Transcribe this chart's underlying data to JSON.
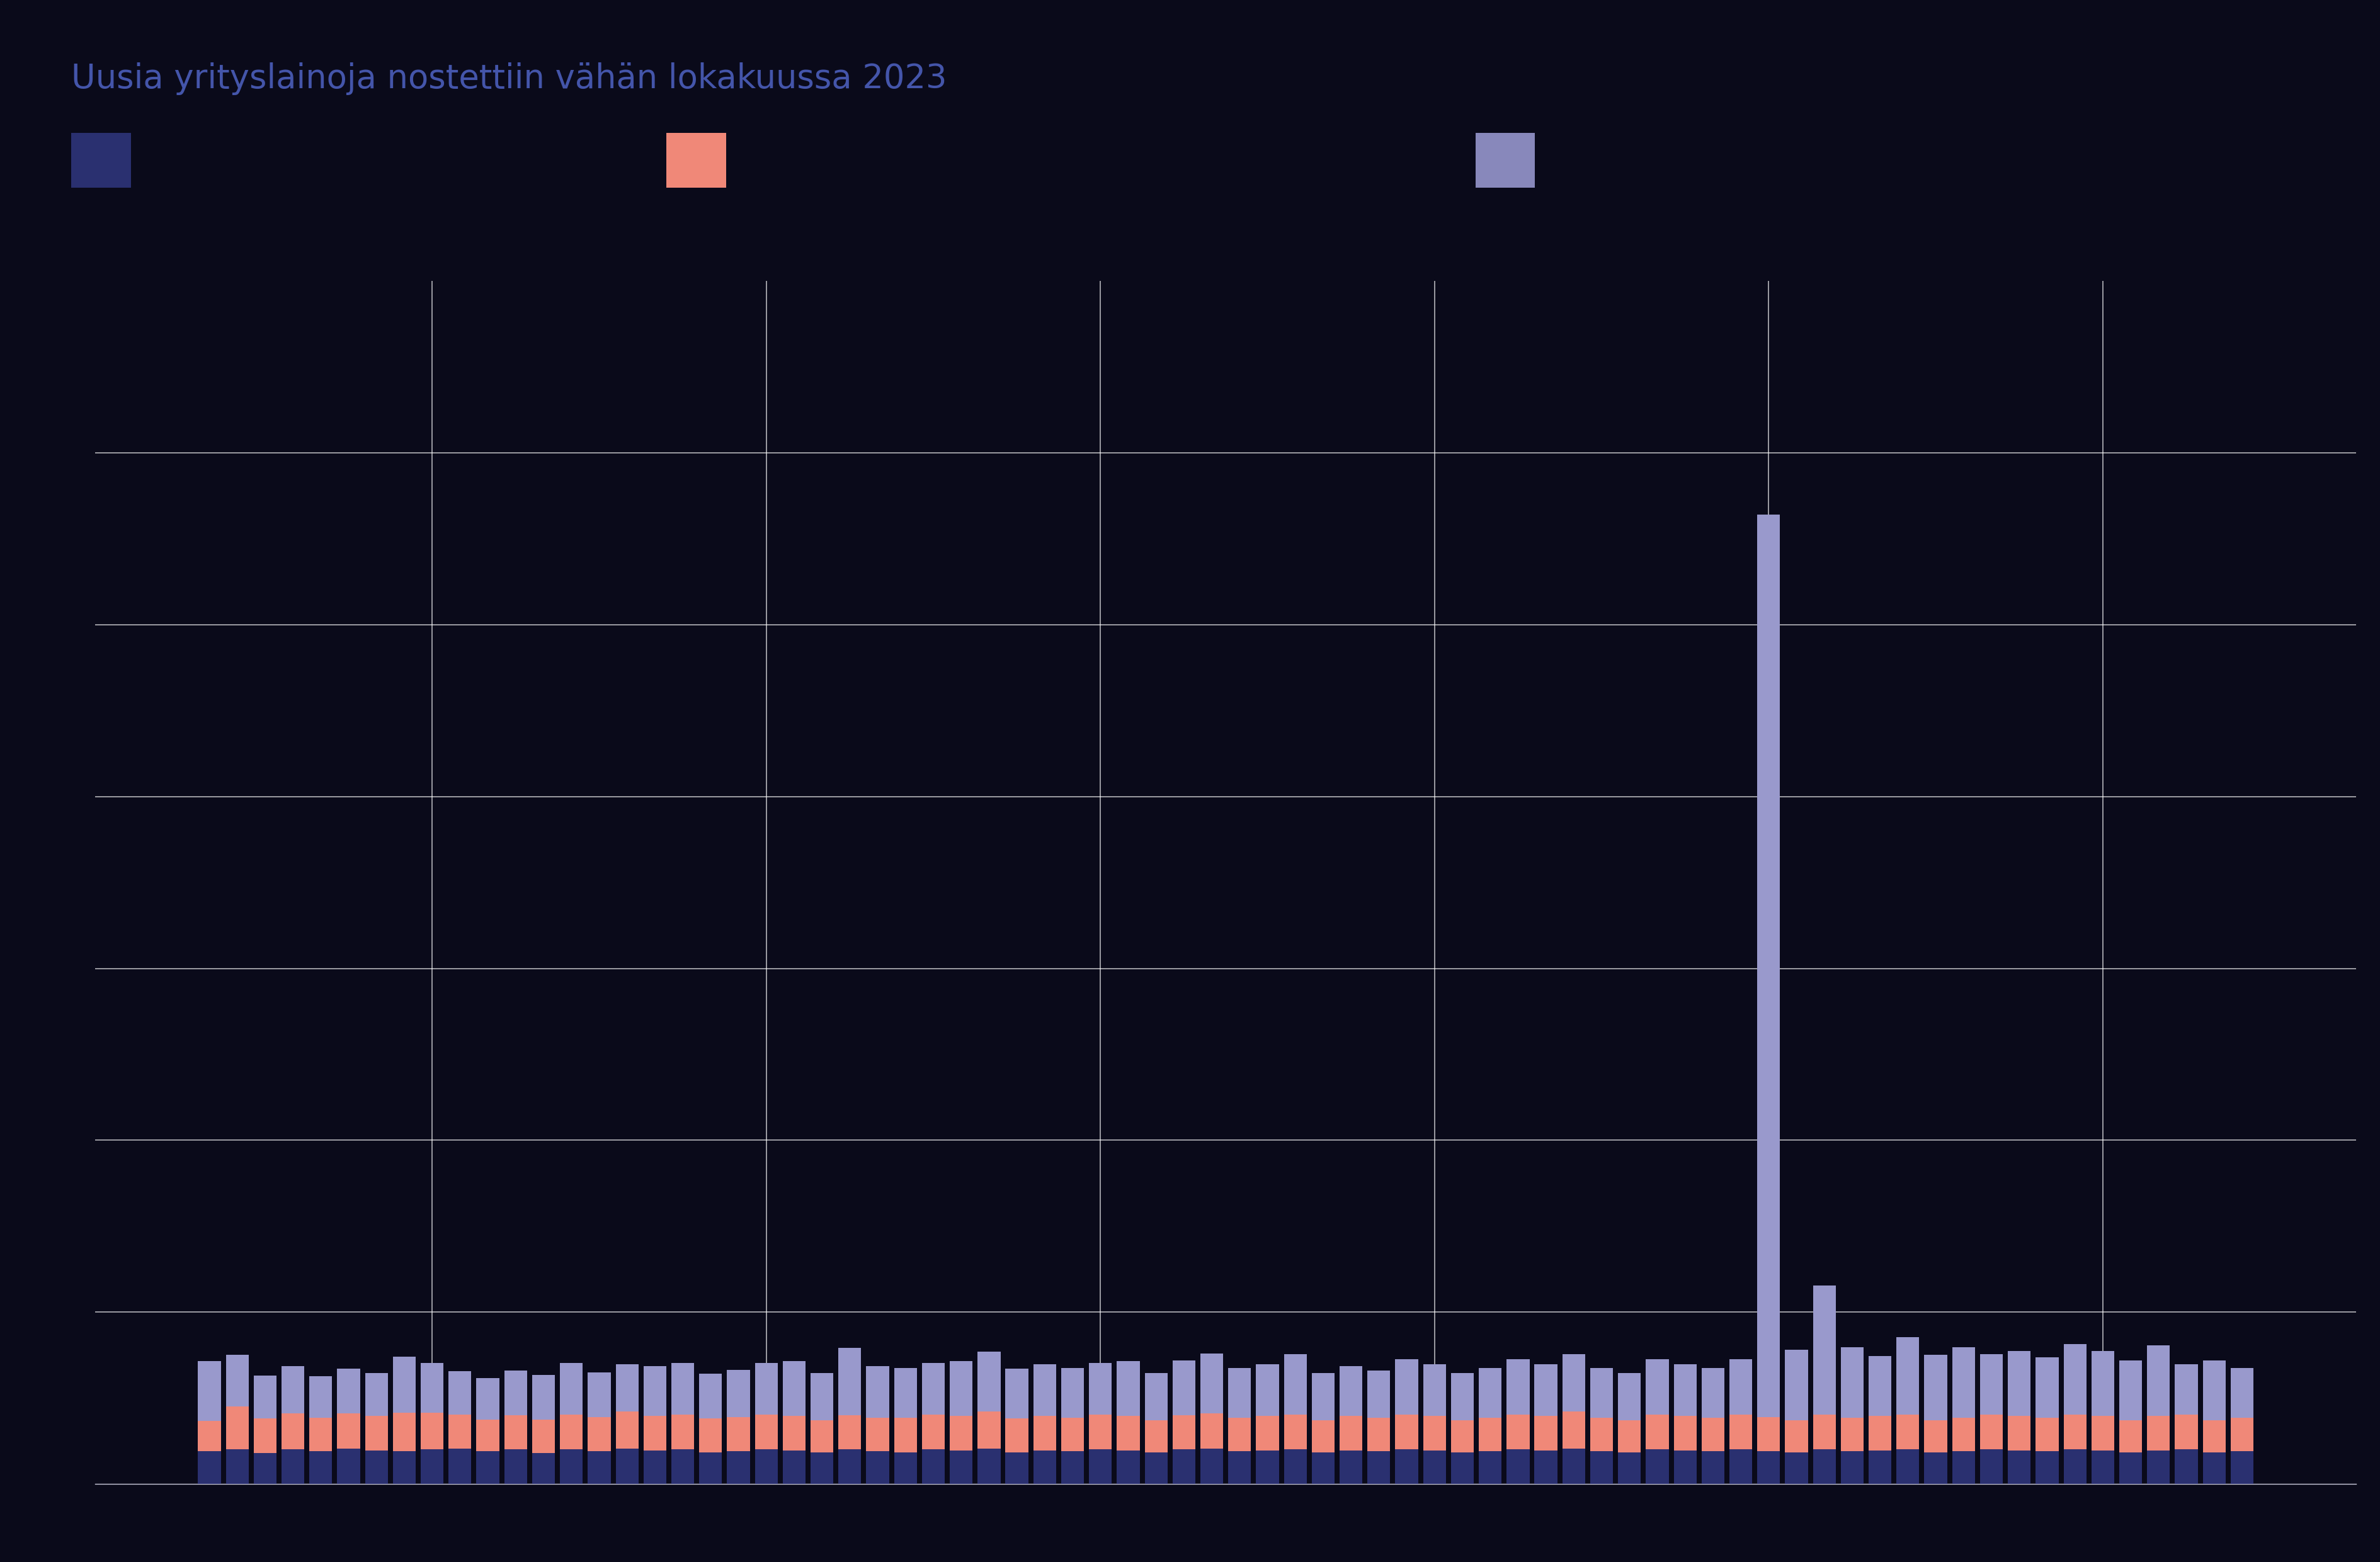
{
  "title": "Uusia yrityslainoja nostettiin vähän lokakuussa 2023",
  "title_color": "#4455aa",
  "background_color": "#0a0a1a",
  "axes_bg_color": "#0a0a1a",
  "bar_color_dark_blue": "#2a3070",
  "bar_color_salmon": "#f08878",
  "bar_color_light_blue": "#9999cc",
  "legend_colors": [
    "#2a3070",
    "#f08878",
    "#8888bb"
  ],
  "grid_color": "#ffffff",
  "text_color": "#ccccdd",
  "ylim": [
    0,
    14000
  ],
  "yticks": [
    2000,
    4000,
    6000,
    8000,
    10000,
    12000
  ],
  "vgrid_positions": [
    8,
    20,
    32,
    44,
    56,
    68
  ],
  "dark_blue": [
    380,
    400,
    360,
    400,
    380,
    410,
    390,
    380,
    400,
    410,
    380,
    400,
    360,
    400,
    380,
    410,
    390,
    400,
    370,
    380,
    400,
    390,
    370,
    400,
    380,
    370,
    400,
    390,
    410,
    370,
    390,
    380,
    400,
    390,
    370,
    400,
    410,
    380,
    390,
    400,
    370,
    390,
    380,
    400,
    390,
    370,
    380,
    400,
    390,
    410,
    380,
    370,
    400,
    390,
    380,
    400,
    380,
    370,
    400,
    380,
    390,
    400,
    370,
    380,
    400,
    390,
    380,
    400,
    390,
    370,
    390,
    400,
    370,
    380
  ],
  "salmon": [
    350,
    500,
    400,
    420,
    390,
    410,
    400,
    450,
    430,
    400,
    370,
    400,
    390,
    410,
    400,
    430,
    400,
    410,
    390,
    400,
    410,
    400,
    370,
    400,
    390,
    400,
    410,
    400,
    430,
    390,
    400,
    390,
    410,
    400,
    370,
    400,
    410,
    390,
    400,
    410,
    370,
    400,
    390,
    410,
    400,
    370,
    390,
    410,
    400,
    430,
    390,
    370,
    410,
    400,
    390,
    410,
    400,
    370,
    410,
    390,
    400,
    410,
    370,
    390,
    410,
    400,
    390,
    410,
    400,
    370,
    400,
    410,
    370,
    390
  ],
  "light_blue": [
    700,
    600,
    500,
    550,
    480,
    520,
    500,
    650,
    580,
    500,
    480,
    520,
    520,
    600,
    520,
    550,
    580,
    600,
    520,
    550,
    600,
    640,
    550,
    780,
    600,
    580,
    600,
    640,
    700,
    580,
    600,
    580,
    600,
    640,
    550,
    640,
    700,
    580,
    600,
    700,
    550,
    580,
    550,
    640,
    600,
    550,
    580,
    640,
    600,
    670,
    580,
    550,
    640,
    600,
    580,
    640,
    10500,
    820,
    1500,
    820,
    700,
    900,
    760,
    820,
    700,
    760,
    700,
    820,
    760,
    700,
    820,
    580,
    700,
    580
  ],
  "n_bars": 74,
  "figsize": [
    37.79,
    24.8
  ]
}
